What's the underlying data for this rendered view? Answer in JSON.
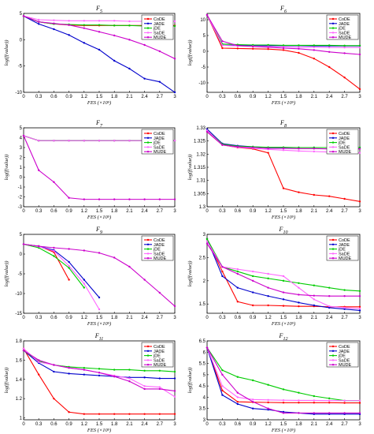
{
  "colors": {
    "CoDE": "#ff0000",
    "JADE": "#0000cc",
    "jDE": "#00cc00",
    "SaDE": "#ff66ff",
    "MUDE": "#cc00cc"
  },
  "legend_labels": [
    "CoDE",
    "JADE",
    "jDE",
    "SaDE",
    "MUDE"
  ],
  "chart_data": [
    {
      "type": "line",
      "title": "F5",
      "xlabel": "FES (×10⁵)",
      "ylabel": "log(f(value))",
      "legend": "top-right",
      "xticks": [
        "0",
        "0.3",
        "0.6",
        "0.9",
        "1.2",
        "1.5",
        "1.8",
        "2.1",
        "2.4",
        "2.7",
        "3"
      ],
      "yticks": [
        "-10",
        "-5",
        "0",
        "5"
      ],
      "ylim": [
        -10,
        5
      ],
      "x": [
        0,
        0.3,
        0.6,
        0.9,
        1.2,
        1.5,
        1.8,
        2.1,
        2.4,
        2.7,
        3
      ],
      "series": [
        {
          "name": "CoDE",
          "values": [
            4.5,
            3.4,
            3.0,
            2.8,
            2.7,
            2.7,
            2.7,
            2.7,
            2.7,
            2.7,
            2.7
          ]
        },
        {
          "name": "JADE",
          "values": [
            4.5,
            3.0,
            2.0,
            0.9,
            -0.6,
            -1.9,
            -4.0,
            -5.5,
            -7.4,
            -8.0,
            -10.0
          ]
        },
        {
          "name": "jDE",
          "values": [
            4.5,
            3.4,
            3.0,
            2.9,
            2.8,
            2.8,
            2.7,
            2.7,
            2.6,
            2.6,
            2.6
          ]
        },
        {
          "name": "SaDE",
          "values": [
            4.5,
            3.8,
            3.7,
            3.6,
            3.6,
            3.6,
            3.6,
            3.5,
            3.5,
            3.5,
            3.5
          ]
        },
        {
          "name": "MUDE",
          "values": [
            4.5,
            3.4,
            3.1,
            2.8,
            2.2,
            1.5,
            0.8,
            0.0,
            -1.0,
            -2.2,
            -3.6
          ]
        }
      ]
    },
    {
      "type": "line",
      "title": "F6",
      "xlabel": "FES (×10⁵)",
      "ylabel": "log(f(value))",
      "legend": "top-right",
      "xticks": [
        "0",
        "0.3",
        "0.6",
        "0.9",
        "1.2",
        "1.5",
        "1.8",
        "2.1",
        "2.4",
        "2.7",
        "3"
      ],
      "yticks": [
        "-10",
        "-5",
        "0",
        "5",
        "10"
      ],
      "ylim": [
        -13,
        12
      ],
      "x": [
        0,
        0.3,
        0.6,
        0.9,
        1.2,
        1.5,
        1.8,
        2.1,
        2.4,
        2.7,
        3
      ],
      "series": [
        {
          "name": "CoDE",
          "values": [
            11.5,
            1.0,
            0.9,
            0.8,
            0.7,
            0.4,
            -0.5,
            -2.3,
            -5.0,
            -8.3,
            -12.0
          ]
        },
        {
          "name": "JADE",
          "values": [
            11.5,
            1.9,
            1.9,
            1.8,
            1.8,
            1.8,
            1.8,
            1.7,
            1.7,
            1.7,
            1.7
          ]
        },
        {
          "name": "jDE",
          "values": [
            11.5,
            2.3,
            2.1,
            2.0,
            2.0,
            1.9,
            1.9,
            1.9,
            1.9,
            1.8,
            1.8
          ]
        },
        {
          "name": "SaDE",
          "values": [
            11.5,
            1.9,
            1.7,
            1.6,
            1.5,
            1.4,
            1.3,
            1.3,
            1.2,
            1.2,
            1.2
          ]
        },
        {
          "name": "MUDE",
          "values": [
            11.5,
            3.2,
            1.8,
            1.5,
            1.3,
            1.0,
            0.8,
            0.4,
            -0.2,
            -0.6,
            -1.0
          ]
        }
      ]
    },
    {
      "type": "line",
      "title": "F7",
      "xlabel": "FES (×10⁵)",
      "ylabel": "log(f(value))",
      "legend": "top-right",
      "xticks": [
        "0",
        "0.3",
        "0.6",
        "0.9",
        "1.2",
        "1.5",
        "1.8",
        "2.1",
        "2.4",
        "2.7",
        "3"
      ],
      "yticks": [
        "-3",
        "-2",
        "-1",
        "0",
        "1",
        "2",
        "3",
        "4",
        "5"
      ],
      "ylim": [
        -3,
        5
      ],
      "x": [
        0,
        0.3,
        0.6,
        0.9,
        1.2,
        1.5,
        1.8,
        2.1,
        2.4,
        2.7,
        3
      ],
      "series": [
        {
          "name": "CoDE",
          "values": [
            4.2,
            3.7,
            3.7,
            3.7,
            3.7,
            3.7,
            3.7,
            3.7,
            3.7,
            3.7,
            3.7
          ]
        },
        {
          "name": "JADE",
          "values": [
            4.2,
            3.7,
            3.7,
            3.7,
            3.7,
            3.7,
            3.7,
            3.7,
            3.7,
            3.7,
            3.7
          ]
        },
        {
          "name": "jDE",
          "values": [
            4.2,
            3.7,
            3.7,
            3.7,
            3.7,
            3.7,
            3.7,
            3.7,
            3.7,
            3.7,
            3.7
          ]
        },
        {
          "name": "SaDE",
          "values": [
            4.2,
            3.7,
            3.7,
            3.7,
            3.7,
            3.7,
            3.7,
            3.7,
            3.7,
            3.7,
            3.7
          ]
        },
        {
          "name": "MUDE",
          "values": [
            4.2,
            0.7,
            -0.5,
            -2.1,
            -2.25,
            -2.25,
            -2.25,
            -2.25,
            -2.25,
            -2.25,
            -2.25
          ]
        }
      ]
    },
    {
      "type": "line",
      "title": "F8",
      "xlabel": "FES (×10⁵)",
      "ylabel": "log(f(value))",
      "legend": "top-right",
      "xticks": [
        "0",
        "0.3",
        "0.6",
        "0.9",
        "1.2",
        "1.5",
        "1.8",
        "2.1",
        "2.4",
        "2.7",
        "3"
      ],
      "yticks": [
        "1.3",
        "1.305",
        "1.31",
        "1.315",
        "1.32",
        "1.325",
        "1.33"
      ],
      "ylim": [
        1.3,
        1.33
      ],
      "x": [
        0,
        0.3,
        0.6,
        0.9,
        1.2,
        1.5,
        1.8,
        2.1,
        2.4,
        2.7,
        3
      ],
      "series": [
        {
          "name": "CoDE",
          "values": [
            1.3285,
            1.3235,
            1.3225,
            1.322,
            1.3205,
            1.307,
            1.3055,
            1.3045,
            1.304,
            1.303,
            1.302
          ]
        },
        {
          "name": "JADE",
          "values": [
            1.3295,
            1.324,
            1.3232,
            1.3228,
            1.3225,
            1.3225,
            1.3225,
            1.3225,
            1.3225,
            1.3225,
            1.3225
          ]
        },
        {
          "name": "jDE",
          "values": [
            1.329,
            1.3238,
            1.323,
            1.3228,
            1.3226,
            1.3226,
            1.3225,
            1.3225,
            1.3225,
            1.3225,
            1.3225
          ]
        },
        {
          "name": "SaDE",
          "values": [
            1.329,
            1.3235,
            1.3226,
            1.3222,
            1.3218,
            1.3215,
            1.3212,
            1.321,
            1.3208,
            1.3206,
            1.3205
          ]
        },
        {
          "name": "MUDE",
          "values": [
            1.3285,
            1.3235,
            1.3228,
            1.3225,
            1.3222,
            1.3222,
            1.3221,
            1.3221,
            1.322,
            1.322,
            1.322
          ]
        }
      ]
    },
    {
      "type": "line",
      "title": "F9",
      "xlabel": "FES (×10⁵)",
      "ylabel": "log(f(value))",
      "legend": "top-right",
      "xticks": [
        "0",
        "0.3",
        "0.6",
        "0.9",
        "1.2",
        "1.5",
        "1.8",
        "2.1",
        "2.4",
        "2.7",
        "3"
      ],
      "yticks": [
        "-15",
        "-10",
        "-5",
        "0",
        "5"
      ],
      "ylim": [
        -15,
        5
      ],
      "x": [
        0,
        0.3,
        0.6,
        0.9,
        1.2,
        1.5,
        1.8,
        2.1,
        2.4,
        2.7,
        3
      ],
      "series": [
        {
          "name": "CoDE",
          "values": [
            2.5,
            2.0,
            0.5,
            -6.5,
            null,
            null,
            null,
            null,
            null,
            null,
            null
          ]
        },
        {
          "name": "JADE",
          "values": [
            2.5,
            2.0,
            1.0,
            -2.0,
            -6.5,
            -11.0,
            null,
            null,
            null,
            null,
            null
          ]
        },
        {
          "name": "jDE",
          "values": [
            2.5,
            1.6,
            -0.5,
            -3.5,
            -8.5,
            null,
            null,
            null,
            null,
            null,
            null
          ]
        },
        {
          "name": "SaDE",
          "values": [
            2.5,
            1.9,
            0.8,
            -3.0,
            -7.5,
            -14.0,
            null,
            null,
            null,
            null,
            null
          ]
        },
        {
          "name": "MUDE",
          "values": [
            2.5,
            2.0,
            1.6,
            1.3,
            0.9,
            0.3,
            -0.9,
            -3.2,
            -6.5,
            -9.8,
            -13.2
          ]
        }
      ]
    },
    {
      "type": "line",
      "title": "F10",
      "xlabel": "FES (×10⁵)",
      "ylabel": "log(f(value))",
      "legend": "top-right",
      "xticks": [
        "0",
        "0.3",
        "0.6",
        "0.9",
        "1.2",
        "1.5",
        "1.8",
        "2.1",
        "2.4",
        "2.7",
        "3"
      ],
      "yticks": [
        "1.5",
        "2",
        "2.5",
        "3"
      ],
      "ylim": [
        1.3,
        3.0
      ],
      "x": [
        0,
        0.3,
        0.6,
        0.9,
        1.2,
        1.5,
        1.8,
        2.1,
        2.4,
        2.7,
        3
      ],
      "series": [
        {
          "name": "CoDE",
          "values": [
            2.9,
            2.2,
            1.55,
            1.47,
            1.47,
            1.46,
            1.45,
            1.45,
            1.44,
            1.44,
            1.44
          ]
        },
        {
          "name": "JADE",
          "values": [
            2.9,
            2.1,
            1.85,
            1.75,
            1.67,
            1.6,
            1.53,
            1.47,
            1.42,
            1.39,
            1.36
          ]
        },
        {
          "name": "jDE",
          "values": [
            2.9,
            2.3,
            2.2,
            2.1,
            2.05,
            2.0,
            1.95,
            1.9,
            1.85,
            1.8,
            1.78
          ]
        },
        {
          "name": "SaDE",
          "values": [
            2.85,
            2.3,
            2.25,
            2.2,
            2.15,
            2.1,
            1.85,
            1.6,
            1.45,
            1.42,
            1.4
          ]
        },
        {
          "name": "MUDE",
          "values": [
            2.8,
            2.3,
            2.15,
            2.0,
            1.85,
            1.75,
            1.7,
            1.68,
            1.67,
            1.67,
            1.67
          ]
        }
      ]
    },
    {
      "type": "line",
      "title": "F11",
      "xlabel": "FES (×10⁵)",
      "ylabel": "log(f(value))",
      "legend": "top-right",
      "xticks": [
        "0",
        "0.3",
        "0.6",
        "0.9",
        "1.2",
        "1.5",
        "1.8",
        "2.1",
        "2.4",
        "2.7",
        "3"
      ],
      "yticks": [
        "1",
        "1.2",
        "1.4",
        "1.6",
        "1.8"
      ],
      "ylim": [
        0.98,
        1.8
      ],
      "x": [
        0,
        0.3,
        0.6,
        0.9,
        1.2,
        1.5,
        1.8,
        2.1,
        2.4,
        2.7,
        3
      ],
      "series": [
        {
          "name": "CoDE",
          "values": [
            1.72,
            1.45,
            1.2,
            1.06,
            1.04,
            1.04,
            1.04,
            1.04,
            1.04,
            1.04,
            1.04
          ]
        },
        {
          "name": "JADE",
          "values": [
            1.7,
            1.57,
            1.48,
            1.46,
            1.45,
            1.44,
            1.43,
            1.42,
            1.42,
            1.41,
            1.41
          ]
        },
        {
          "name": "jDE",
          "values": [
            1.7,
            1.59,
            1.55,
            1.53,
            1.52,
            1.51,
            1.5,
            1.5,
            1.49,
            1.49,
            1.48
          ]
        },
        {
          "name": "SaDE",
          "values": [
            1.72,
            1.58,
            1.55,
            1.52,
            1.5,
            1.47,
            1.44,
            1.41,
            1.33,
            1.32,
            1.22
          ]
        },
        {
          "name": "MUDE",
          "values": [
            1.7,
            1.6,
            1.55,
            1.52,
            1.5,
            1.47,
            1.43,
            1.38,
            1.3,
            1.3,
            1.28
          ]
        }
      ]
    },
    {
      "type": "line",
      "title": "F12",
      "xlabel": "FES (×10⁵)",
      "ylabel": "log(f(value))",
      "legend": "top-right",
      "xticks": [
        "0",
        "0.3",
        "0.6",
        "0.9",
        "1.2",
        "1.5",
        "1.8",
        "2.1",
        "2.4",
        "2.7",
        "3"
      ],
      "yticks": [
        "3",
        "3.5",
        "4",
        "4.5",
        "5",
        "5.5",
        "6",
        "6.5"
      ],
      "ylim": [
        3,
        6.5
      ],
      "x": [
        0,
        0.3,
        0.6,
        0.9,
        1.2,
        1.5,
        1.8,
        2.1,
        2.4,
        2.7,
        3
      ],
      "series": [
        {
          "name": "CoDE",
          "values": [
            6.2,
            4.3,
            3.8,
            3.78,
            3.77,
            3.76,
            3.76,
            3.76,
            3.76,
            3.75,
            3.75
          ]
        },
        {
          "name": "JADE",
          "values": [
            6.2,
            4.1,
            3.7,
            3.5,
            3.45,
            3.35,
            3.3,
            3.25,
            3.25,
            3.25,
            3.25
          ]
        },
        {
          "name": "jDE",
          "values": [
            6.2,
            5.2,
            4.9,
            4.75,
            4.55,
            4.35,
            4.2,
            4.05,
            3.95,
            3.85,
            3.85
          ]
        },
        {
          "name": "SaDE",
          "values": [
            6.2,
            4.5,
            4.0,
            3.9,
            3.88,
            3.87,
            3.86,
            3.86,
            3.85,
            3.85,
            3.85
          ]
        },
        {
          "name": "MUDE",
          "values": [
            6.2,
            5.0,
            4.2,
            3.8,
            3.5,
            3.3,
            3.3,
            3.3,
            3.3,
            3.3,
            3.3
          ]
        }
      ]
    }
  ]
}
